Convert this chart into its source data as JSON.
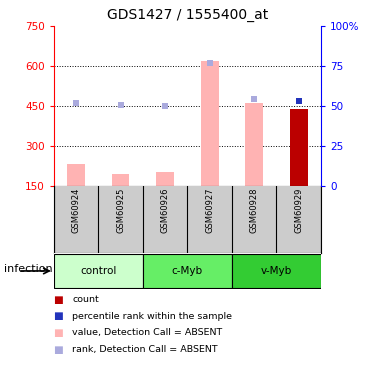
{
  "title": "GDS1427 / 1555400_at",
  "samples": [
    "GSM60924",
    "GSM60925",
    "GSM60926",
    "GSM60927",
    "GSM60928",
    "GSM60929"
  ],
  "bar_values": [
    230,
    195,
    200,
    620,
    460,
    440
  ],
  "bar_colors": [
    "#ffb3b3",
    "#ffb3b3",
    "#ffb3b3",
    "#ffb3b3",
    "#ffb3b3",
    "#bb0000"
  ],
  "rank_dots_y": [
    460,
    452,
    450,
    610,
    478,
    468
  ],
  "rank_dots_color": [
    "#aaaadd",
    "#aaaadd",
    "#aaaadd",
    "#aaaadd",
    "#aaaadd",
    "#2233bb"
  ],
  "ylim_left": [
    150,
    750
  ],
  "ylim_right": [
    0,
    100
  ],
  "left_ticks": [
    150,
    300,
    450,
    600,
    750
  ],
  "right_ticks": [
    0,
    25,
    50,
    75,
    100
  ],
  "right_tick_labels": [
    "0",
    "25",
    "50",
    "75",
    "100%"
  ],
  "grid_values": [
    300,
    450,
    600
  ],
  "groups": [
    {
      "name": "control",
      "start": 0,
      "end": 1,
      "color": "#ccffcc"
    },
    {
      "name": "c-Myb",
      "start": 2,
      "end": 3,
      "color": "#66ee66"
    },
    {
      "name": "v-Myb",
      "start": 4,
      "end": 5,
      "color": "#33cc33"
    }
  ],
  "legend_items": [
    {
      "color": "#bb0000",
      "label": "count"
    },
    {
      "color": "#2233bb",
      "label": "percentile rank within the sample"
    },
    {
      "color": "#ffb3b3",
      "label": "value, Detection Call = ABSENT"
    },
    {
      "color": "#aaaadd",
      "label": "rank, Detection Call = ABSENT"
    }
  ],
  "sample_bg": "#cccccc",
  "bar_width": 0.4
}
